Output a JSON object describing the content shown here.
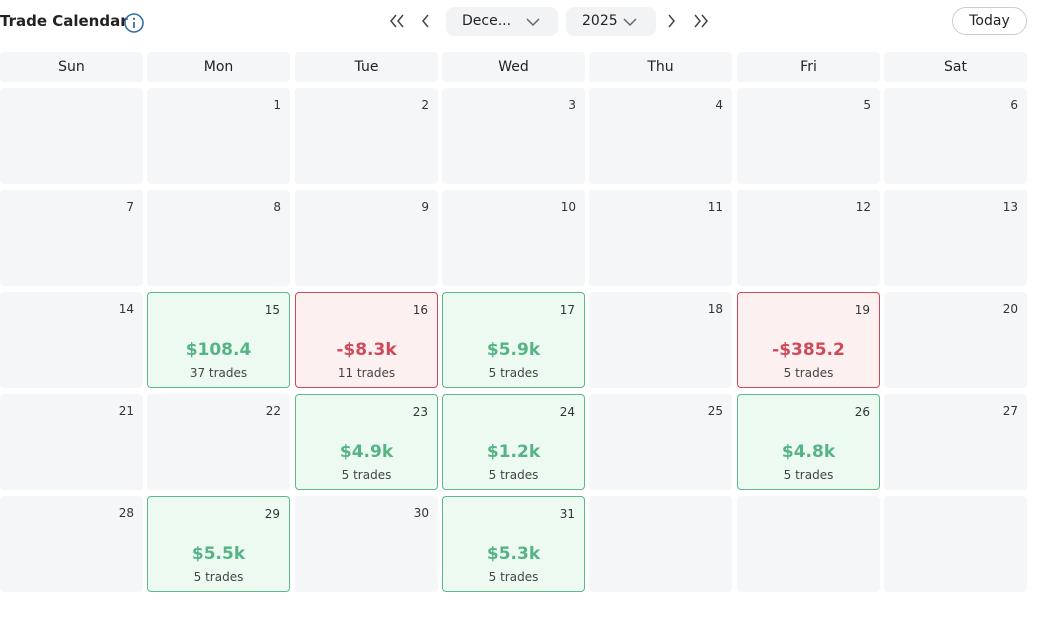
{
  "header": {
    "title": "Trade Calendar",
    "month": "Dece...",
    "year": "2025",
    "today": "Today"
  },
  "weekdays": [
    "Sun",
    "Mon",
    "Tue",
    "Wed",
    "Thu",
    "Fri",
    "Sat"
  ],
  "weeks": [
    [
      null,
      {
        "day": 1
      },
      {
        "day": 2
      },
      {
        "day": 3
      },
      {
        "day": 4
      },
      {
        "day": 5
      },
      {
        "day": 6
      }
    ],
    [
      {
        "day": 7
      },
      {
        "day": 8
      },
      {
        "day": 9
      },
      {
        "day": 10
      },
      {
        "day": 11
      },
      {
        "day": 12
      },
      {
        "day": 13
      }
    ],
    [
      {
        "day": 14
      },
      {
        "day": 15,
        "pnl": "$108.4",
        "trades": "37 trades",
        "status": "profit"
      },
      {
        "day": 16,
        "pnl": "-$8.3k",
        "trades": "11 trades",
        "status": "loss"
      },
      {
        "day": 17,
        "pnl": "$5.9k",
        "trades": "5 trades",
        "status": "profit"
      },
      {
        "day": 18
      },
      {
        "day": 19,
        "pnl": "-$385.2",
        "trades": "5 trades",
        "status": "loss"
      },
      {
        "day": 20
      }
    ],
    [
      {
        "day": 21
      },
      {
        "day": 22
      },
      {
        "day": 23,
        "pnl": "$4.9k",
        "trades": "5 trades",
        "status": "profit"
      },
      {
        "day": 24,
        "pnl": "$1.2k",
        "trades": "5 trades",
        "status": "profit"
      },
      {
        "day": 25
      },
      {
        "day": 26,
        "pnl": "$4.8k",
        "trades": "5 trades",
        "status": "profit"
      },
      {
        "day": 27
      }
    ],
    [
      {
        "day": 28
      },
      {
        "day": 29,
        "pnl": "$5.5k",
        "trades": "5 trades",
        "status": "profit"
      },
      {
        "day": 30
      },
      {
        "day": 31,
        "pnl": "$5.3k",
        "trades": "5 trades",
        "status": "profit"
      },
      null,
      null,
      null
    ]
  ]
}
